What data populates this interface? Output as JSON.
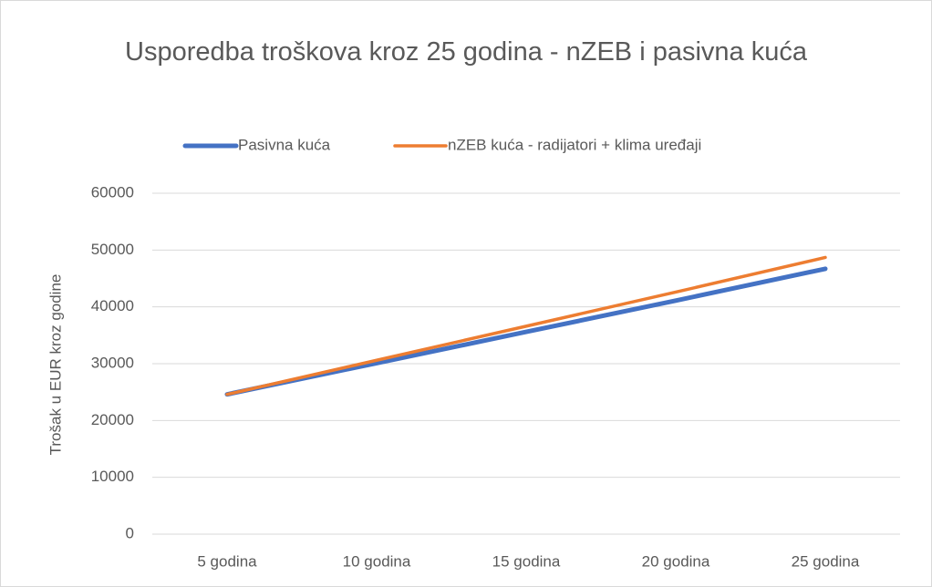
{
  "chart_data": {
    "type": "line",
    "title": "Usporedba troškova kroz 25 godina - nZEB i pasivna kuća",
    "y_label": "Trošak u EUR kroz godine",
    "categories": [
      "5 godina",
      "10 godina",
      "15 godina",
      "20 godina",
      "25 godina"
    ],
    "series": [
      {
        "name": "Pasivna kuća",
        "color": "#4472c4",
        "values": [
          24600,
          30100,
          35600,
          41100,
          46700
        ]
      },
      {
        "name": "nZEB kuća - radijatori + klima uređaji",
        "color": "#ed7d31",
        "values": [
          24600,
          30600,
          36600,
          42600,
          48700
        ]
      }
    ],
    "ylim": [
      0,
      60000
    ],
    "yticks": [
      0,
      10000,
      20000,
      30000,
      40000,
      50000,
      60000
    ],
    "grid": true,
    "legend": "top"
  }
}
